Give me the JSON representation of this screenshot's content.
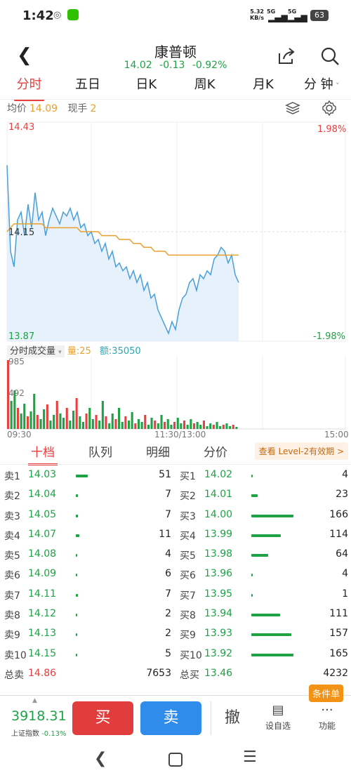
{
  "status_bar": {
    "time": "1:42",
    "net_speed": "5.32",
    "net_unit": "KB/s",
    "battery": "63",
    "signal1": "5G",
    "signal2": "5G"
  },
  "header": {
    "title": "康普顿",
    "price": "14.02",
    "change": "-0.13",
    "change_pct": "-0.92%"
  },
  "tabs": [
    "分时",
    "五日",
    "日K",
    "周K",
    "月K",
    "分 钟"
  ],
  "info": {
    "avg_label": "均价",
    "avg_value": "14.09",
    "hand_label": "现手",
    "hand_value": "2"
  },
  "chart_data": {
    "type": "line",
    "y_max": "14.43",
    "y_mid": "14.15",
    "y_min": "13.87",
    "pct_max": "1.98%",
    "pct_min": "-1.98%",
    "ylim": [
      13.87,
      14.43
    ],
    "prev_close": 14.15,
    "price_series": [
      14.32,
      14.1,
      14.06,
      14.18,
      14.2,
      14.14,
      14.22,
      14.16,
      14.25,
      14.18,
      14.2,
      14.14,
      14.18,
      14.21,
      14.19,
      14.17,
      14.2,
      14.19,
      14.21,
      14.18,
      14.2,
      14.16,
      14.17,
      14.14,
      14.15,
      14.12,
      14.13,
      14.1,
      14.12,
      14.08,
      14.1,
      14.06,
      14.07,
      14.05,
      14.06,
      14.03,
      14.05,
      14.02,
      14.04,
      14.0,
      14.02,
      13.98,
      13.99,
      13.95,
      13.93,
      13.91,
      13.89,
      13.92,
      13.9,
      13.95,
      13.98,
      13.99,
      14.02,
      14.03,
      14.0,
      14.04,
      14.03,
      14.05,
      14.04,
      14.08,
      14.09,
      14.11,
      14.1,
      14.07,
      14.09,
      14.04,
      14.02
    ],
    "avg_series": [
      14.15,
      14.16,
      14.17,
      14.17,
      14.17,
      14.17,
      14.17,
      14.17,
      14.17,
      14.17,
      14.17,
      14.16,
      14.16,
      14.16,
      14.16,
      14.16,
      14.16,
      14.16,
      14.16,
      14.16,
      14.16,
      14.15,
      14.15,
      14.15,
      14.15,
      14.15,
      14.15,
      14.14,
      14.14,
      14.14,
      14.14,
      14.14,
      14.13,
      14.13,
      14.13,
      14.13,
      14.12,
      14.12,
      14.12,
      14.11,
      14.11,
      14.11,
      14.1,
      14.1,
      14.1,
      14.1,
      14.09,
      14.09,
      14.09,
      14.09,
      14.09,
      14.09,
      14.09,
      14.09,
      14.09,
      14.09,
      14.09,
      14.09,
      14.09,
      14.09,
      14.09,
      14.09,
      14.09,
      14.09,
      14.09,
      14.09,
      14.09
    ],
    "x_start": "09:30",
    "x_mid": "11:30/13:00",
    "x_end": "15:00",
    "volume": {
      "label": "分时成交量",
      "vol_label": "量:",
      "vol_value": "25",
      "amt_label": "额:",
      "amt_value": "35050",
      "y_max": "985",
      "y_mid": "492"
    }
  },
  "order_tabs": [
    "十档",
    "队列",
    "明细",
    "分价"
  ],
  "level2": "查看 Level-2有效期 >",
  "sell_orders": [
    {
      "label": "卖1",
      "price": "14.03",
      "vol": "51",
      "bar": 0.11
    },
    {
      "label": "卖2",
      "price": "14.04",
      "vol": "7",
      "bar": 0.02
    },
    {
      "label": "卖3",
      "price": "14.05",
      "vol": "7",
      "bar": 0.02
    },
    {
      "label": "卖4",
      "price": "14.07",
      "vol": "11",
      "bar": 0.03
    },
    {
      "label": "卖5",
      "price": "14.08",
      "vol": "4",
      "bar": 0.01
    },
    {
      "label": "卖6",
      "price": "14.09",
      "vol": "6",
      "bar": 0.01
    },
    {
      "label": "卖7",
      "price": "14.11",
      "vol": "7",
      "bar": 0.02
    },
    {
      "label": "卖8",
      "price": "14.12",
      "vol": "2",
      "bar": 0.005
    },
    {
      "label": "卖9",
      "price": "14.13",
      "vol": "2",
      "bar": 0.005
    },
    {
      "label": "卖10",
      "price": "14.15",
      "vol": "5",
      "bar": 0.01
    }
  ],
  "buy_orders": [
    {
      "label": "买1",
      "price": "14.02",
      "vol": "4",
      "bar": 0.01
    },
    {
      "label": "买2",
      "price": "14.01",
      "vol": "23",
      "bar": 0.06
    },
    {
      "label": "买3",
      "price": "14.00",
      "vol": "166",
      "bar": 0.4
    },
    {
      "label": "买4",
      "price": "13.99",
      "vol": "114",
      "bar": 0.28
    },
    {
      "label": "买5",
      "price": "13.98",
      "vol": "64",
      "bar": 0.16
    },
    {
      "label": "买6",
      "price": "13.96",
      "vol": "4",
      "bar": 0.01
    },
    {
      "label": "买7",
      "price": "13.95",
      "vol": "1",
      "bar": 0.005
    },
    {
      "label": "买8",
      "price": "13.94",
      "vol": "111",
      "bar": 0.27
    },
    {
      "label": "买9",
      "price": "13.93",
      "vol": "157",
      "bar": 0.38
    },
    {
      "label": "买10",
      "price": "13.92",
      "vol": "165",
      "bar": 0.4
    }
  ],
  "totals": {
    "sell_label": "总卖",
    "sell_price": "14.86",
    "sell_vol": "7653",
    "buy_label": "总买",
    "buy_price": "13.46",
    "buy_vol": "4232"
  },
  "tradebar": {
    "index_value": "3918.31",
    "index_label": "上证指数",
    "index_change": "-0.13%",
    "buy": "买",
    "sell": "卖",
    "cancel": "撤",
    "watchlist": "设自选",
    "functions": "功能",
    "condition": "条件单"
  },
  "colors": {
    "up": "#e84040",
    "down": "#1fa246",
    "avg": "#e9a02c",
    "line": "#4a9fd8"
  }
}
